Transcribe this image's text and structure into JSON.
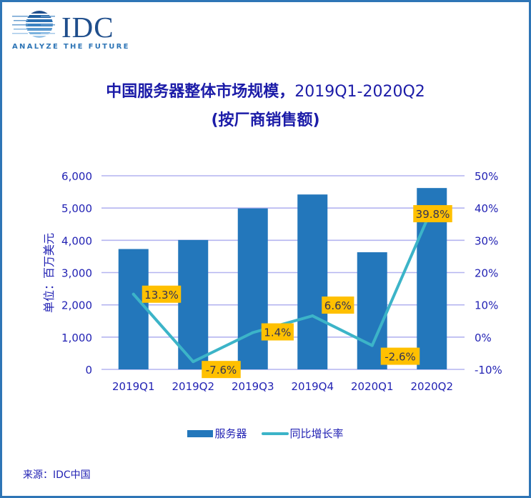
{
  "logo": {
    "name": "IDC",
    "tagline": "ANALYZE THE FUTURE"
  },
  "title": {
    "line1_cn": "中国服务器整体市场规模，",
    "line1_period": "2019Q1-2020Q2",
    "line2": "(按厂商销售额)"
  },
  "source": "来源：IDC中国",
  "colors": {
    "bar": "#2377bb",
    "line": "#3cb4c8",
    "label_bg": "#ffc000",
    "axis_text": "#2323b4",
    "grid": "#b4b4f0",
    "frame": "#2e75b6"
  },
  "chart_data": {
    "type": "bar+line",
    "title": "中国服务器整体市场规模，2019Q1-2020Q2 (按厂商销售额)",
    "categories": [
      "2019Q1",
      "2019Q2",
      "2019Q3",
      "2019Q4",
      "2020Q1",
      "2020Q2"
    ],
    "series": [
      {
        "name": "服务器",
        "type": "bar",
        "axis": "left",
        "values": [
          3730,
          4010,
          4990,
          5420,
          3630,
          5620
        ]
      },
      {
        "name": "同比增长率",
        "type": "line",
        "axis": "right",
        "values": [
          13.3,
          -7.6,
          1.4,
          6.6,
          -2.6,
          39.8
        ],
        "labels": [
          "13.3%",
          "-7.6%",
          "1.4%",
          "6.6%",
          "-2.6%",
          "39.8%"
        ]
      }
    ],
    "ylabel": "单位：百万美元",
    "ylim": [
      0,
      6000
    ],
    "yticks": [
      "0",
      "1,000",
      "2,000",
      "3,000",
      "4,000",
      "5,000",
      "6,000"
    ],
    "y2lim": [
      -10,
      50
    ],
    "y2ticks": [
      "-10%",
      "0%",
      "10%",
      "20%",
      "30%",
      "40%",
      "50%"
    ],
    "grid": true,
    "legend": "bottom"
  }
}
